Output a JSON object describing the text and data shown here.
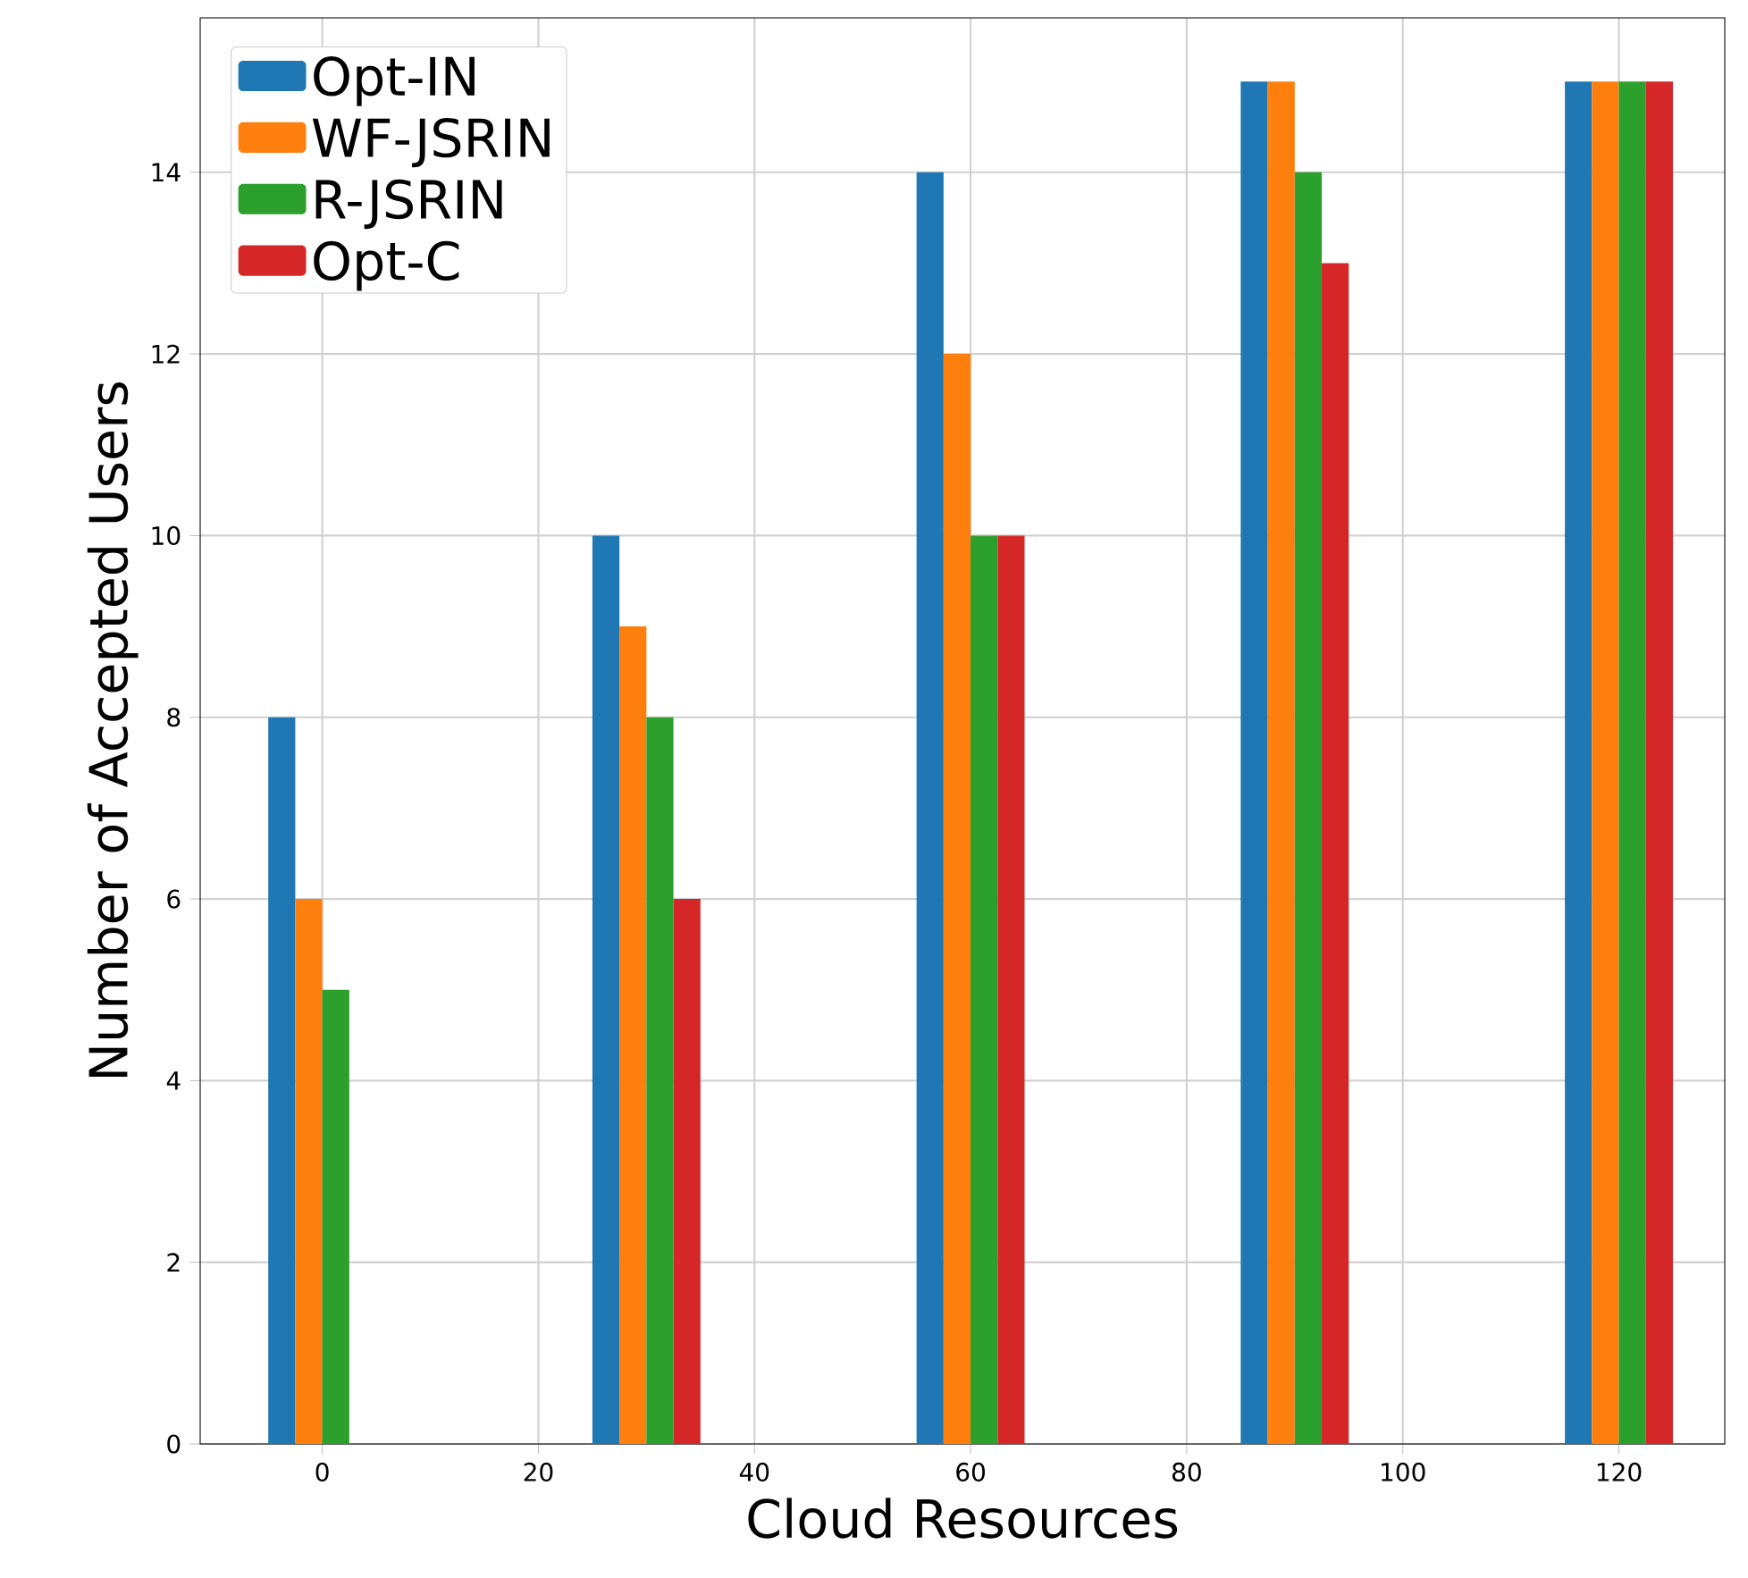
{
  "chart_data": {
    "type": "bar",
    "xlabel": "Cloud Resources",
    "ylabel": "Number of Accepted Users",
    "x": [
      0,
      30,
      60,
      90,
      120
    ],
    "series": [
      {
        "name": "Opt-IN",
        "color": "#1f77b4",
        "values": [
          8,
          10,
          14,
          15,
          15
        ]
      },
      {
        "name": "WF-JSRIN",
        "color": "#ff7f0e",
        "values": [
          6,
          9,
          12,
          15,
          15
        ]
      },
      {
        "name": "R-JSRIN",
        "color": "#2ca02c",
        "values": [
          5,
          8,
          10,
          14,
          15
        ]
      },
      {
        "name": "Opt-C",
        "color": "#d62728",
        "values": [
          0,
          6,
          10,
          13,
          15
        ]
      }
    ],
    "xlim": [
      -11.3,
      129.8
    ],
    "ylim": [
      0,
      15.7
    ],
    "xticks": [
      0,
      20,
      40,
      60,
      80,
      100,
      120
    ],
    "yticks": [
      0,
      2,
      4,
      6,
      8,
      10,
      12,
      14
    ],
    "grid": true,
    "legend": "top left"
  }
}
